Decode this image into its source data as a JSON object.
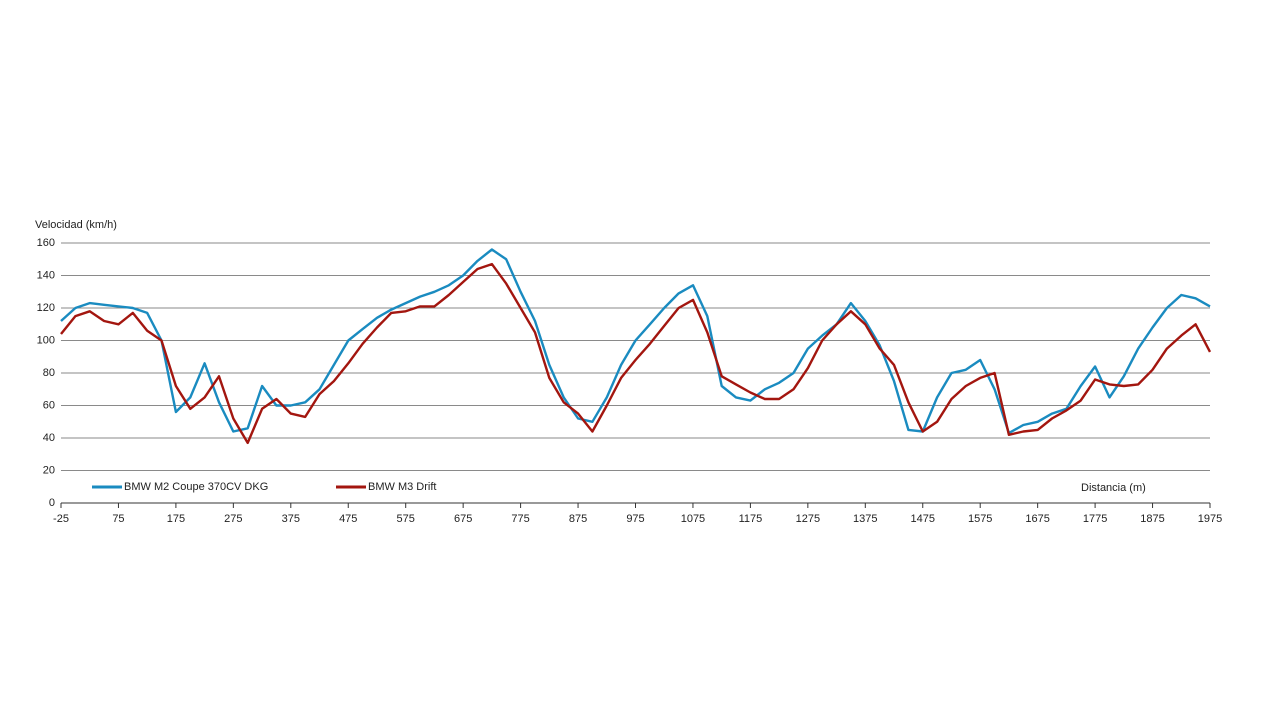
{
  "chart_data": {
    "type": "line",
    "y_label": "Velocidad (km/h)",
    "x_label": "Distancia (m)",
    "x": [
      -25,
      0,
      25,
      50,
      75,
      100,
      125,
      150,
      175,
      200,
      225,
      250,
      275,
      300,
      325,
      350,
      375,
      400,
      425,
      450,
      475,
      500,
      525,
      550,
      575,
      600,
      625,
      650,
      675,
      700,
      725,
      750,
      775,
      800,
      825,
      850,
      875,
      900,
      925,
      950,
      975,
      1000,
      1025,
      1050,
      1075,
      1100,
      1125,
      1150,
      1175,
      1200,
      1225,
      1250,
      1275,
      1300,
      1325,
      1350,
      1375,
      1400,
      1425,
      1450,
      1475,
      1500,
      1525,
      1550,
      1575,
      1600,
      1625,
      1650,
      1675,
      1700,
      1725,
      1750,
      1775,
      1800,
      1825,
      1850,
      1875,
      1900,
      1925,
      1950,
      1975
    ],
    "series": [
      {
        "name": "BMW M2 Coupe 370CV DKG",
        "color": "#1a8bc0",
        "values": [
          112,
          120,
          123,
          122,
          121,
          120,
          117,
          100,
          56,
          65,
          86,
          62,
          44,
          46,
          72,
          60,
          60,
          62,
          70,
          85,
          100,
          107,
          114,
          119,
          123,
          127,
          130,
          134,
          140,
          149,
          156,
          150,
          130,
          112,
          85,
          65,
          52,
          50,
          65,
          85,
          100,
          110,
          120,
          129,
          134,
          115,
          72,
          65,
          63,
          70,
          74,
          80,
          95,
          103,
          110,
          123,
          112,
          97,
          75,
          45,
          44,
          65,
          80,
          82,
          88,
          70,
          43,
          48,
          50,
          55,
          58,
          72,
          84,
          65,
          78,
          95,
          108,
          120,
          128,
          126,
          121
        ]
      },
      {
        "name": "BMW M3 Drift",
        "color": "#a3160f",
        "values": [
          104,
          115,
          118,
          112,
          110,
          117,
          106,
          100,
          72,
          58,
          65,
          78,
          52,
          37,
          58,
          64,
          55,
          53,
          67,
          75,
          86,
          98,
          108,
          117,
          118,
          121,
          121,
          128,
          136,
          144,
          147,
          135,
          120,
          105,
          77,
          62,
          55,
          44,
          60,
          77,
          88,
          98,
          109,
          120,
          125,
          105,
          78,
          73,
          68,
          64,
          64,
          70,
          83,
          100,
          110,
          118,
          110,
          95,
          85,
          62,
          44,
          50,
          64,
          72,
          77,
          80,
          42,
          44,
          45,
          52,
          57,
          63,
          76,
          73,
          72,
          73,
          82,
          95,
          103,
          110,
          93
        ]
      }
    ],
    "xlim": [
      -25,
      1975
    ],
    "xticks": [
      -25,
      75,
      175,
      275,
      375,
      475,
      575,
      675,
      775,
      875,
      975,
      1075,
      1175,
      1275,
      1375,
      1475,
      1575,
      1675,
      1775,
      1875,
      1975
    ],
    "ylim": [
      0,
      160
    ],
    "yticks": [
      0,
      20,
      40,
      60,
      80,
      100,
      120,
      140,
      160
    ],
    "grid": true,
    "legend": "lower left"
  }
}
